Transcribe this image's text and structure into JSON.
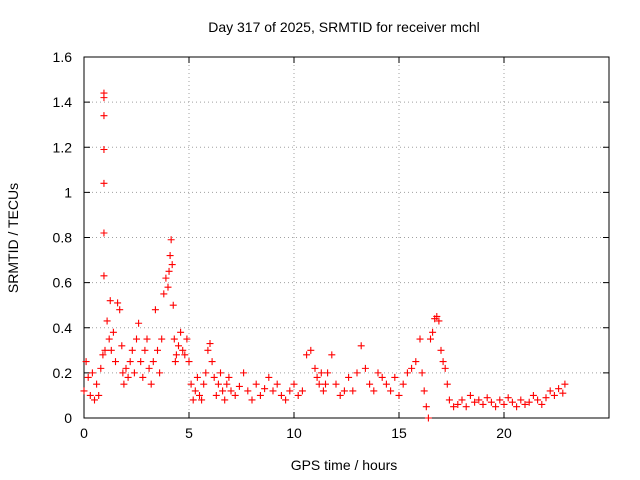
{
  "chart_data": {
    "type": "scatter",
    "title": "Day 317 of 2025, SRMTID for receiver mchl",
    "xlabel": "GPS time / hours",
    "ylabel": "SRMTID / TECUs",
    "xlim": [
      0,
      25
    ],
    "ylim": [
      0,
      1.6
    ],
    "x_ticks": [
      0,
      5,
      10,
      15,
      20
    ],
    "y_ticks": [
      0,
      0.2,
      0.4,
      0.6,
      0.8,
      1,
      1.2,
      1.4,
      1.6
    ],
    "x_tick_labels": [
      "0",
      "5",
      "10",
      "15",
      "20"
    ],
    "y_tick_labels": [
      "0",
      "0.2",
      "0.4",
      "0.6",
      "0.8",
      "1",
      "1.2",
      "1.4",
      "1.6"
    ],
    "grid": true,
    "marker": "+",
    "color": "#ff0000",
    "series": [
      {
        "name": "SRMTID",
        "x": [
          0.0,
          0.1,
          0.2,
          0.3,
          0.4,
          0.5,
          0.6,
          0.7,
          0.8,
          0.9,
          0.95,
          0.95,
          0.95,
          0.95,
          0.95,
          0.95,
          0.95,
          1.0,
          1.1,
          1.2,
          1.25,
          1.3,
          1.4,
          1.5,
          1.6,
          1.7,
          1.8,
          1.85,
          1.9,
          2.0,
          2.1,
          2.2,
          2.3,
          2.4,
          2.5,
          2.6,
          2.7,
          2.8,
          2.9,
          3.0,
          3.1,
          3.2,
          3.3,
          3.4,
          3.5,
          3.6,
          3.7,
          3.8,
          3.9,
          4.0,
          4.05,
          4.1,
          4.15,
          4.2,
          4.25,
          4.3,
          4.35,
          4.4,
          4.5,
          4.6,
          4.7,
          4.8,
          4.9,
          5.0,
          5.1,
          5.2,
          5.3,
          5.4,
          5.5,
          5.6,
          5.7,
          5.8,
          5.9,
          6.0,
          6.1,
          6.2,
          6.3,
          6.4,
          6.5,
          6.6,
          6.7,
          6.8,
          6.9,
          7.0,
          7.2,
          7.4,
          7.6,
          7.8,
          8.0,
          8.2,
          8.4,
          8.6,
          8.8,
          9.0,
          9.2,
          9.4,
          9.6,
          9.8,
          10.0,
          10.2,
          10.4,
          10.6,
          10.8,
          11.0,
          11.1,
          11.2,
          11.3,
          11.4,
          11.5,
          11.6,
          11.8,
          12.0,
          12.2,
          12.4,
          12.6,
          12.8,
          13.0,
          13.2,
          13.4,
          13.6,
          13.8,
          14.0,
          14.2,
          14.4,
          14.6,
          14.8,
          15.0,
          15.2,
          15.4,
          15.6,
          15.8,
          16.0,
          16.1,
          16.2,
          16.3,
          16.4,
          16.5,
          16.6,
          16.7,
          16.8,
          16.9,
          17.0,
          17.1,
          17.2,
          17.3,
          17.4,
          17.6,
          17.8,
          18.0,
          18.2,
          18.4,
          18.6,
          18.8,
          19.0,
          19.2,
          19.4,
          19.6,
          19.8,
          20.0,
          20.2,
          20.4,
          20.6,
          20.8,
          21.0,
          21.2,
          21.4,
          21.6,
          21.8,
          22.0,
          22.2,
          22.4,
          22.6,
          22.8,
          22.9
        ],
        "y": [
          0.12,
          0.25,
          0.18,
          0.1,
          0.2,
          0.08,
          0.15,
          0.1,
          0.22,
          0.28,
          0.63,
          0.82,
          1.04,
          1.19,
          1.34,
          1.42,
          1.44,
          0.3,
          0.43,
          0.35,
          0.52,
          0.3,
          0.38,
          0.25,
          0.51,
          0.48,
          0.32,
          0.2,
          0.15,
          0.22,
          0.18,
          0.25,
          0.3,
          0.2,
          0.35,
          0.42,
          0.25,
          0.18,
          0.3,
          0.35,
          0.22,
          0.15,
          0.25,
          0.48,
          0.3,
          0.2,
          0.35,
          0.55,
          0.62,
          0.58,
          0.65,
          0.72,
          0.79,
          0.68,
          0.5,
          0.35,
          0.25,
          0.28,
          0.32,
          0.38,
          0.3,
          0.28,
          0.35,
          0.25,
          0.15,
          0.08,
          0.12,
          0.18,
          0.1,
          0.08,
          0.15,
          0.2,
          0.3,
          0.33,
          0.25,
          0.18,
          0.1,
          0.15,
          0.2,
          0.12,
          0.08,
          0.15,
          0.18,
          0.12,
          0.1,
          0.14,
          0.2,
          0.12,
          0.08,
          0.15,
          0.1,
          0.13,
          0.18,
          0.12,
          0.15,
          0.1,
          0.08,
          0.12,
          0.15,
          0.1,
          0.12,
          0.28,
          0.3,
          0.22,
          0.18,
          0.15,
          0.2,
          0.12,
          0.15,
          0.2,
          0.28,
          0.15,
          0.1,
          0.12,
          0.18,
          0.12,
          0.2,
          0.32,
          0.22,
          0.15,
          0.12,
          0.2,
          0.18,
          0.15,
          0.12,
          0.18,
          0.1,
          0.15,
          0.2,
          0.22,
          0.25,
          0.35,
          0.2,
          0.12,
          0.05,
          0.0,
          0.35,
          0.38,
          0.44,
          0.45,
          0.43,
          0.3,
          0.25,
          0.22,
          0.15,
          0.08,
          0.05,
          0.06,
          0.08,
          0.05,
          0.1,
          0.07,
          0.08,
          0.06,
          0.09,
          0.07,
          0.05,
          0.08,
          0.06,
          0.09,
          0.07,
          0.05,
          0.08,
          0.06,
          0.07,
          0.1,
          0.08,
          0.06,
          0.09,
          0.12,
          0.1,
          0.13,
          0.11,
          0.15
        ]
      }
    ]
  }
}
